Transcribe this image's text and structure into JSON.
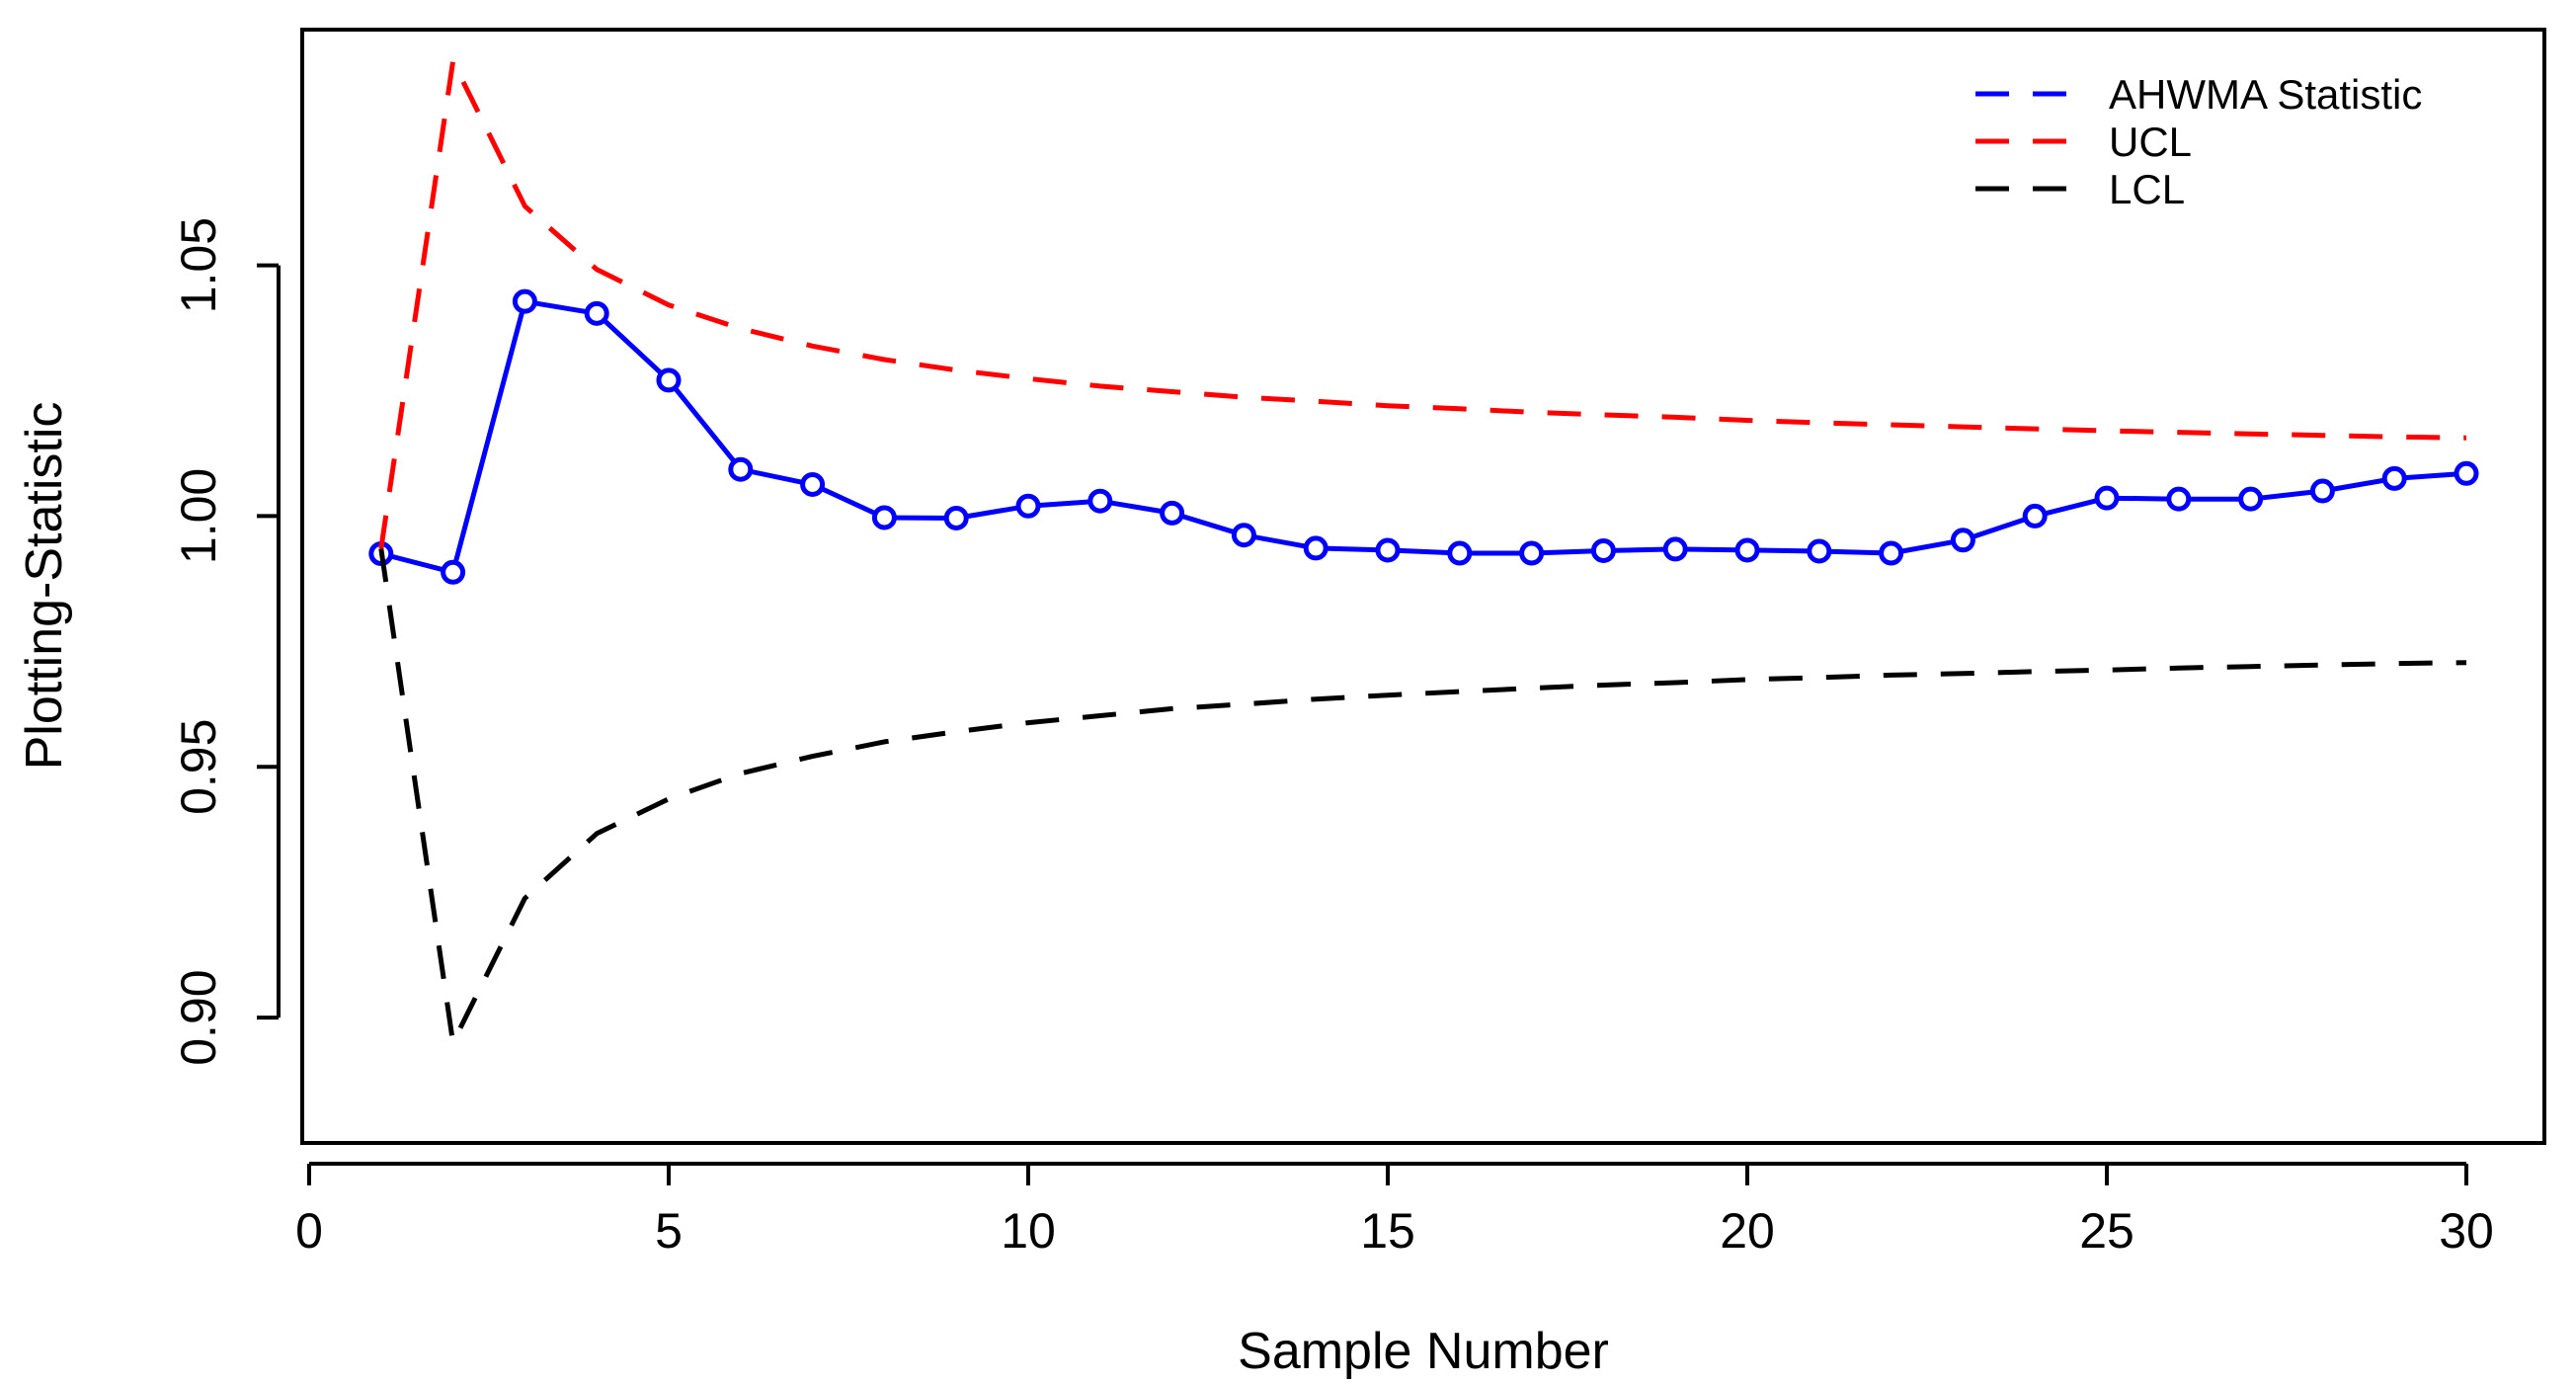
{
  "chart_data": {
    "type": "line",
    "title": "",
    "xlabel": "Sample Number",
    "ylabel": "Plotting-Statistic",
    "xlim": [
      0,
      30
    ],
    "ylim": [
      0.875,
      1.097
    ],
    "x_ticks": [
      0,
      5,
      10,
      15,
      20,
      25,
      30
    ],
    "x_tick_labels": [
      "0",
      "5",
      "10",
      "15",
      "20",
      "25",
      "30"
    ],
    "y_ticks": [
      0.9,
      0.95,
      1.0,
      1.05
    ],
    "y_tick_labels": [
      "0.90",
      "0.95",
      "1.00",
      "1.05"
    ],
    "legend_position": "top-right",
    "series": [
      {
        "name": "AHWMA Statistic",
        "color": "#0000ff",
        "style": "solid-with-markers",
        "x": [
          1,
          2,
          3,
          4,
          5,
          6,
          7,
          8,
          9,
          10,
          11,
          12,
          13,
          14,
          15,
          16,
          17,
          18,
          19,
          20,
          21,
          22,
          23,
          24,
          25,
          26,
          27,
          28,
          29,
          30
        ],
        "values": [
          0.9925,
          0.9888,
          1.0428,
          1.0404,
          1.0271,
          1.0093,
          1.0063,
          0.9997,
          0.9996,
          1.002,
          1.003,
          1.0006,
          0.9962,
          0.9936,
          0.9932,
          0.9926,
          0.9926,
          0.9931,
          0.9934,
          0.9932,
          0.993,
          0.9926,
          0.9952,
          1.0,
          1.0036,
          1.0034,
          1.0034,
          1.005,
          1.0075,
          1.0085
        ]
      },
      {
        "name": "UCL",
        "color": "#ff0000",
        "style": "dashed",
        "x": [
          1,
          2,
          3,
          4,
          5,
          6,
          7,
          8,
          9,
          10,
          11,
          12,
          13,
          14,
          15,
          16,
          17,
          18,
          19,
          20,
          21,
          22,
          23,
          24,
          25,
          26,
          27,
          28,
          29,
          30
        ],
        "values": [
          0.9935,
          1.0907,
          1.0618,
          1.0492,
          1.0421,
          1.0374,
          1.0339,
          1.0312,
          1.0291,
          1.0274,
          1.0259,
          1.0248,
          1.0237,
          1.0229,
          1.022,
          1.0214,
          1.0207,
          1.0202,
          1.0197,
          1.0191,
          1.0186,
          1.0182,
          1.0178,
          1.0174,
          1.017,
          1.0167,
          1.0164,
          1.0161,
          1.0158,
          1.0156
        ]
      },
      {
        "name": "LCL",
        "color": "#000000",
        "style": "dashed",
        "x": [
          1,
          2,
          3,
          4,
          5,
          6,
          7,
          8,
          9,
          10,
          11,
          12,
          13,
          14,
          15,
          16,
          17,
          18,
          19,
          20,
          21,
          22,
          23,
          24,
          25,
          26,
          27,
          28,
          29,
          30
        ],
        "values": [
          0.9935,
          0.895,
          0.9238,
          0.9367,
          0.9436,
          0.9487,
          0.9521,
          0.955,
          0.957,
          0.9588,
          0.9602,
          0.9616,
          0.9625,
          0.9635,
          0.9643,
          0.965,
          0.9657,
          0.9663,
          0.9668,
          0.9674,
          0.9678,
          0.9683,
          0.9686,
          0.969,
          0.9693,
          0.9697,
          0.97,
          0.9703,
          0.9706,
          0.9708
        ]
      }
    ]
  }
}
